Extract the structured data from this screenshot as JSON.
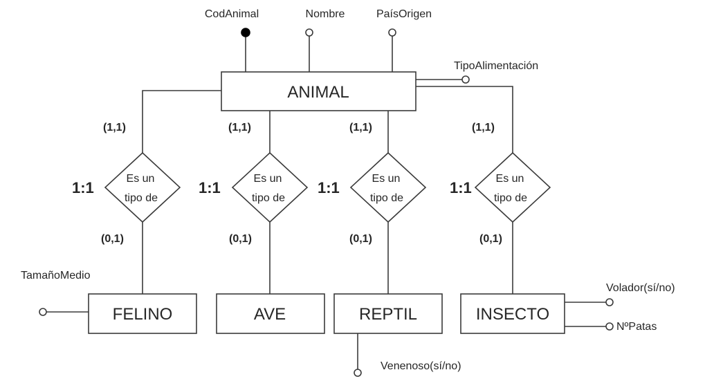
{
  "colors": {
    "cardinality": "#2e75b6",
    "type_ratio": "#ff0000",
    "stroke": "#3a3a3a"
  },
  "supertype": {
    "name": "ANIMAL",
    "attributes": {
      "key": "CodAnimal",
      "name": "Nombre",
      "country": "PaísOrigen",
      "diet": "TipoAlimentación"
    }
  },
  "relationships": [
    {
      "line1": "Es un",
      "line2": "tipo de",
      "ratio": "1:1",
      "card_top": "(1,1)",
      "card_bottom": "(0,1)"
    },
    {
      "line1": "Es un",
      "line2": "tipo de",
      "ratio": "1:1",
      "card_top": "(1,1)",
      "card_bottom": "(0,1)"
    },
    {
      "line1": "Es un",
      "line2": "tipo de",
      "ratio": "1:1",
      "card_top": "(1,1)",
      "card_bottom": "(0,1)"
    },
    {
      "line1": "Es un",
      "line2": "tipo de",
      "ratio": "1:1",
      "card_top": "(1,1)",
      "card_bottom": "(0,1)"
    }
  ],
  "subtypes": [
    {
      "name": "FELINO",
      "attributes": [
        "TamañoMedio"
      ]
    },
    {
      "name": "AVE",
      "attributes": []
    },
    {
      "name": "REPTIL",
      "attributes": [
        "Venenoso(sí/no)"
      ]
    },
    {
      "name": "INSECTO",
      "attributes": [
        "Volador(sí/no)",
        "NºPatas"
      ]
    }
  ]
}
